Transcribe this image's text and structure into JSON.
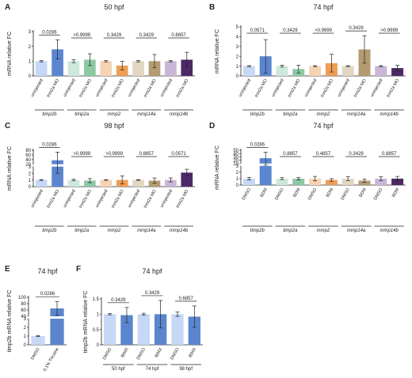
{
  "chart_data": [
    {
      "panel": "A",
      "type": "bar",
      "title": "50 hpf",
      "ylabel": "mRNA relative FC",
      "ylim": [
        0,
        3
      ],
      "yticks": [
        0,
        1,
        2,
        3
      ],
      "broken": false,
      "categories": [
        "uninjected",
        "tnnt2a MO",
        "uninjected",
        "tnnt2a MO",
        "uninjected",
        "tnnt2a MO",
        "uninjected",
        "tnnt2a MO",
        "uninjected",
        "tnnt2a MO"
      ],
      "values": [
        1.0,
        1.8,
        1.0,
        1.1,
        1.0,
        0.7,
        1.0,
        1.0,
        1.0,
        1.1
      ],
      "errors": [
        0.05,
        0.65,
        0.1,
        0.4,
        0.05,
        0.3,
        0.05,
        0.45,
        0.05,
        0.5
      ],
      "groups": [
        "timp2b",
        "timp2a",
        "mmp2",
        "mmp14a",
        "mmp14b"
      ],
      "pvalues": [
        "0.0286",
        ">0.9999",
        "0.3429",
        "0.3429",
        "0.8857"
      ]
    },
    {
      "panel": "B",
      "type": "bar",
      "title": "74 hpf",
      "ylabel": "mRNA relative FC",
      "ylim": [
        0,
        5
      ],
      "yticks": [
        0,
        1,
        2,
        3,
        4,
        5
      ],
      "broken": false,
      "categories": [
        "uninjected",
        "tnnt2a MO",
        "uninjected",
        "tnnt2a MO",
        "uninjected",
        "tnnt2a MO",
        "uninjected",
        "tnnt2a MO",
        "uninjected",
        "tnnt2a MO"
      ],
      "values": [
        1.0,
        2.0,
        1.0,
        0.7,
        1.0,
        1.3,
        1.0,
        2.7,
        1.0,
        0.8
      ],
      "errors": [
        0.05,
        1.7,
        0.1,
        0.4,
        0.05,
        0.9,
        0.05,
        1.4,
        0.05,
        0.3
      ],
      "groups": [
        "timp2b",
        "timp2a",
        "mmp2",
        "mmp14a",
        "mmp14b"
      ],
      "pvalues": [
        "0.0571",
        "0.3429",
        ">0.9999",
        "0.3429",
        ">0.9999"
      ]
    },
    {
      "panel": "C",
      "type": "bar",
      "title": "98 hpf",
      "ylabel": "mRNA relative FC",
      "ylim": [
        0,
        80
      ],
      "yticks": [
        0,
        1,
        2,
        3,
        20,
        40,
        60,
        80
      ],
      "broken": true,
      "categories": [
        "uninjected",
        "tnnt2a MO",
        "uninjected",
        "tnnt2a MO",
        "uninjected",
        "tnnt2a MO",
        "uninjected",
        "tnnt2a MO",
        "uninjected",
        "tnnt2a MO"
      ],
      "values": [
        1.0,
        37.0,
        1.0,
        0.9,
        1.0,
        1.0,
        1.0,
        0.9,
        1.0,
        2.1
      ],
      "errors": [
        0.05,
        35.0,
        0.1,
        0.3,
        0.05,
        0.6,
        0.05,
        0.4,
        0.3,
        0.5
      ],
      "groups": [
        "timp2b",
        "timp2a",
        "mmp2",
        "mmp14a",
        "mmp14b"
      ],
      "pvalues": [
        "0.0286",
        ">0.9999",
        ">0.9999",
        "0.8857",
        "0.0571"
      ]
    },
    {
      "panel": "D",
      "type": "bar",
      "title": "74 hpf",
      "ylabel": "mRNA relative FC",
      "ylim": [
        0,
        50
      ],
      "yticks": [
        0,
        1,
        2,
        3,
        10,
        20,
        30,
        40,
        50
      ],
      "broken": true,
      "categories": [
        "DMSO",
        "BDM",
        "DMSO",
        "BDM",
        "DMSO",
        "BDM",
        "DMSO",
        "BDM",
        "DMSO",
        "BDM"
      ],
      "values": [
        1.0,
        26.0,
        1.0,
        1.0,
        1.0,
        0.8,
        1.0,
        0.7,
        1.0,
        1.0
      ],
      "errors": [
        0.2,
        18.0,
        0.15,
        0.2,
        0.35,
        0.2,
        0.3,
        0.25,
        0.3,
        0.35
      ],
      "groups": [
        "timp2b",
        "timp2a",
        "mmp2",
        "mmp14a",
        "mmp14b"
      ],
      "pvalues": [
        "0.0286",
        "0.8857",
        "0.4857",
        "0.3429",
        "0.8857"
      ]
    },
    {
      "panel": "E",
      "type": "bar",
      "title": "74 hpf",
      "ylabel": "timp2b mRNA relative FC",
      "ylim": [
        0,
        100
      ],
      "yticks": [
        0,
        1,
        2,
        3,
        40,
        60,
        80,
        100
      ],
      "broken": true,
      "categories": [
        "DMSO",
        "0.1% Tricaine"
      ],
      "values": [
        1.0,
        65.0
      ],
      "errors": [
        0.05,
        22.0
      ],
      "groups": [],
      "pvalues": [
        "0.0286"
      ]
    },
    {
      "panel": "F",
      "type": "bar",
      "title": "74 hpf",
      "ylabel": "timp2b mRNA relative FC",
      "ylim": [
        0,
        1.5
      ],
      "yticks": [
        0.0,
        0.5,
        1.0,
        1.5
      ],
      "broken": false,
      "categories": [
        "DMSO",
        "IBMX",
        "DMSO",
        "IBMX",
        "DMSO",
        "IBMX"
      ],
      "values": [
        1.0,
        0.97,
        1.0,
        1.0,
        1.0,
        0.92
      ],
      "errors": [
        0.02,
        0.25,
        0.03,
        0.45,
        0.07,
        0.35
      ],
      "groups": [
        "50 hpf",
        "74 hpf",
        "98 hpf"
      ],
      "pvalues": [
        "0.3429",
        "0.3429",
        "0.6857"
      ]
    }
  ],
  "colors": {
    "A": [
      "#c6d8f5",
      "#5b86cf",
      "#cfe8dc",
      "#8cc9a3",
      "#f6d3b3",
      "#ef9e55",
      "#e3d6c3",
      "#b59b72",
      "#cbb6d6",
      "#4d2a66"
    ],
    "B": [
      "#c6d8f5",
      "#5b86cf",
      "#cfe8dc",
      "#8cc9a3",
      "#f6d3b3",
      "#ef9e55",
      "#e3d6c3",
      "#b59b72",
      "#cbb6d6",
      "#4d2a66"
    ],
    "C": [
      "#c6d8f5",
      "#5b86cf",
      "#cfe8dc",
      "#8cc9a3",
      "#f6d3b3",
      "#ef9e55",
      "#e3d6c3",
      "#b59b72",
      "#cbb6d6",
      "#4d2a66"
    ],
    "D": [
      "#c6d8f5",
      "#5b86cf",
      "#cfe8dc",
      "#8cc9a3",
      "#f6d3b3",
      "#ef9e55",
      "#e3d6c3",
      "#b59b72",
      "#cbb6d6",
      "#4d2a66"
    ],
    "E": [
      "#c6d8f5",
      "#5b86cf"
    ],
    "F": [
      "#c6d8f5",
      "#5b86cf",
      "#c6d8f5",
      "#5b86cf",
      "#c6d8f5",
      "#5b86cf"
    ]
  }
}
